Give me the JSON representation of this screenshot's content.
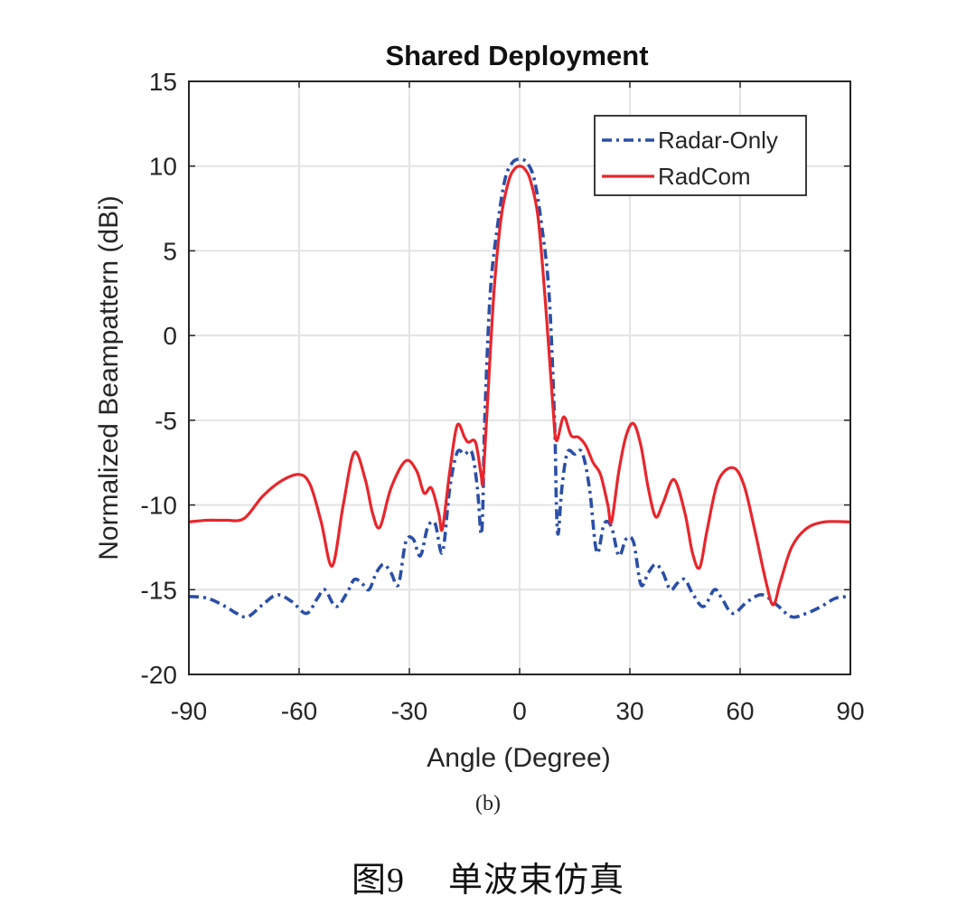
{
  "chart_data": {
    "type": "line",
    "title": "Shared Deployment",
    "xlabel": "Angle (Degree)",
    "ylabel": "Normalized Beampattern (dBi)",
    "xlim": [
      -90,
      90
    ],
    "ylim": [
      -20,
      15
    ],
    "xticks": [
      -90,
      -60,
      -30,
      0,
      30,
      60,
      90
    ],
    "yticks": [
      15,
      10,
      5,
      0,
      -5,
      -10,
      -15,
      -20
    ],
    "grid": true,
    "legend_position": "top-right",
    "series": [
      {
        "name": "Radar-Only",
        "color": "#2b4fa8",
        "style": "dash-dot",
        "x": [
          -90,
          -85,
          -80,
          -77,
          -74,
          -70,
          -66,
          -62,
          -58,
          -55,
          -53,
          -50,
          -47,
          -45,
          -43,
          -41,
          -39,
          -37,
          -35,
          -33,
          -31,
          -29,
          -27,
          -25,
          -23,
          -21,
          -19,
          -17,
          -15,
          -13,
          -11.5,
          -10.5,
          -10,
          -9.5,
          -8,
          -6,
          -4,
          -2,
          0,
          2,
          4,
          6,
          8,
          9.5,
          10,
          10.5,
          11.5,
          13,
          15,
          17,
          19,
          21,
          23,
          25,
          27,
          29,
          31,
          33,
          35,
          37,
          39,
          41,
          43,
          45,
          47,
          50,
          53,
          55,
          58,
          62,
          66,
          70,
          74,
          78,
          82,
          86,
          90
        ],
        "y": [
          -15.4,
          -15.5,
          -16.0,
          -16.4,
          -16.6,
          -15.9,
          -15.3,
          -15.7,
          -16.4,
          -15.5,
          -15.0,
          -16.0,
          -15.2,
          -14.4,
          -14.6,
          -15.0,
          -14.0,
          -13.5,
          -14.0,
          -14.7,
          -12.2,
          -12.0,
          -13.0,
          -11.3,
          -11.1,
          -12.8,
          -9.0,
          -6.9,
          -7.0,
          -6.9,
          -9.0,
          -11.7,
          -10.0,
          -5.0,
          2.5,
          6.5,
          9.2,
          10.2,
          10.4,
          10.2,
          9.2,
          6.5,
          2.5,
          -5.0,
          -10.0,
          -11.7,
          -9.0,
          -6.9,
          -7.0,
          -6.9,
          -9.0,
          -12.8,
          -11.1,
          -11.3,
          -13.0,
          -12.0,
          -12.2,
          -14.7,
          -14.0,
          -13.5,
          -14.0,
          -15.0,
          -14.6,
          -14.4,
          -15.2,
          -16.0,
          -15.0,
          -15.5,
          -16.4,
          -15.7,
          -15.3,
          -15.9,
          -16.6,
          -16.4,
          -16.0,
          -15.5,
          -15.4
        ]
      },
      {
        "name": "RadCom",
        "color": "#e8262c",
        "style": "solid",
        "x": [
          -90,
          -85,
          -80,
          -75,
          -70,
          -65,
          -60,
          -57,
          -54,
          -51,
          -48,
          -45,
          -42,
          -40,
          -38,
          -35,
          -31,
          -28,
          -26,
          -24,
          -22,
          -21,
          -19,
          -17,
          -15,
          -14,
          -12,
          -10.5,
          -10,
          -9,
          -7,
          -5,
          -3,
          -1.5,
          0,
          1.5,
          3,
          5,
          7,
          9,
          10,
          12,
          14,
          16,
          18,
          20,
          22,
          24,
          25,
          27,
          29,
          31,
          33,
          35,
          37,
          39,
          42,
          45,
          47,
          49,
          51,
          54,
          58,
          61,
          64,
          67,
          69,
          71,
          74,
          78,
          83,
          90
        ],
        "y": [
          -11.0,
          -10.9,
          -10.9,
          -10.8,
          -9.5,
          -8.6,
          -8.2,
          -8.8,
          -11.0,
          -13.6,
          -10.0,
          -6.9,
          -8.5,
          -10.5,
          -11.3,
          -9.0,
          -7.4,
          -8.0,
          -9.3,
          -9.0,
          -10.5,
          -11.4,
          -8.0,
          -5.3,
          -6.0,
          -6.3,
          -6.3,
          -8.2,
          -8.6,
          -5.0,
          2.5,
          7.0,
          9.1,
          9.8,
          10.0,
          9.8,
          9.1,
          7.0,
          2.0,
          -4.0,
          -6.2,
          -4.8,
          -5.9,
          -6.0,
          -6.5,
          -7.5,
          -8.2,
          -10.0,
          -11.0,
          -8.0,
          -5.9,
          -5.2,
          -6.5,
          -9.0,
          -10.7,
          -9.9,
          -8.5,
          -10.5,
          -12.8,
          -13.7,
          -11.5,
          -8.6,
          -7.8,
          -8.8,
          -11.5,
          -14.5,
          -15.9,
          -14.5,
          -12.5,
          -11.4,
          -11.0,
          -11.0
        ]
      }
    ]
  },
  "caption": {
    "sub_label": "(b)",
    "figure_number": "图9",
    "figure_title": "单波束仿真"
  }
}
